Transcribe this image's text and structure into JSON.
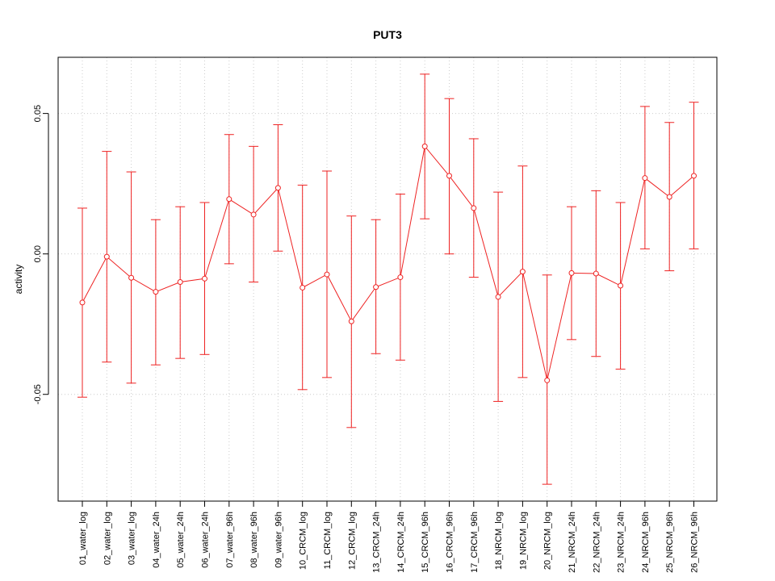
{
  "chart_data": {
    "type": "line",
    "title": "PUT3",
    "xlabel": "",
    "ylabel": "activity",
    "ylim": [
      -0.088,
      0.07
    ],
    "yticks": [
      -0.05,
      0.0,
      0.05
    ],
    "ytick_labels": [
      "-0.05",
      "0.00",
      "0.05"
    ],
    "grid": true,
    "categories": [
      "01_water_log",
      "02_water_log",
      "03_water_log",
      "04_water_24h",
      "05_water_24h",
      "06_water_24h",
      "07_water_96h",
      "08_water_96h",
      "09_water_96h",
      "10_CRCM_log",
      "11_CRCM_log",
      "12_CRCM_log",
      "13_CRCM_24h",
      "14_CRCM_24h",
      "15_CRCM_96h",
      "16_CRCM_96h",
      "17_CRCM_96h",
      "18_NRCM_log",
      "19_NRCM_log",
      "20_NRCM_log",
      "21_NRCM_24h",
      "22_NRCM_24h",
      "23_NRCM_24h",
      "24_NRCM_96h",
      "25_NRCM_96h",
      "26_NRCM_96h"
    ],
    "series": [
      {
        "color": "#ee2222",
        "values": [
          -0.0173,
          -0.001,
          -0.0085,
          -0.0135,
          -0.01,
          -0.0088,
          0.0195,
          0.014,
          0.0235,
          -0.012,
          -0.0073,
          -0.024,
          -0.0118,
          -0.0083,
          0.0383,
          0.0278,
          0.0163,
          -0.0153,
          -0.0063,
          -0.045,
          -0.0068,
          -0.007,
          -0.0113,
          0.027,
          0.0203,
          0.0278
        ],
        "upper": [
          0.0163,
          0.0365,
          0.0292,
          0.0122,
          0.0168,
          0.0183,
          0.0425,
          0.0383,
          0.046,
          0.0245,
          0.0295,
          0.0135,
          0.0122,
          0.0213,
          0.064,
          0.0553,
          0.041,
          0.022,
          0.0313,
          -0.0075,
          0.0168,
          0.0225,
          0.0183,
          0.0525,
          0.0468,
          0.054
        ],
        "lower": [
          -0.051,
          -0.0385,
          -0.046,
          -0.0395,
          -0.0372,
          -0.0358,
          -0.0035,
          -0.01,
          0.001,
          -0.0483,
          -0.044,
          -0.0618,
          -0.0355,
          -0.0378,
          0.0125,
          0.0,
          -0.0083,
          -0.0525,
          -0.044,
          -0.082,
          -0.0305,
          -0.0365,
          -0.041,
          0.0018,
          -0.006,
          0.0018
        ]
      }
    ]
  }
}
